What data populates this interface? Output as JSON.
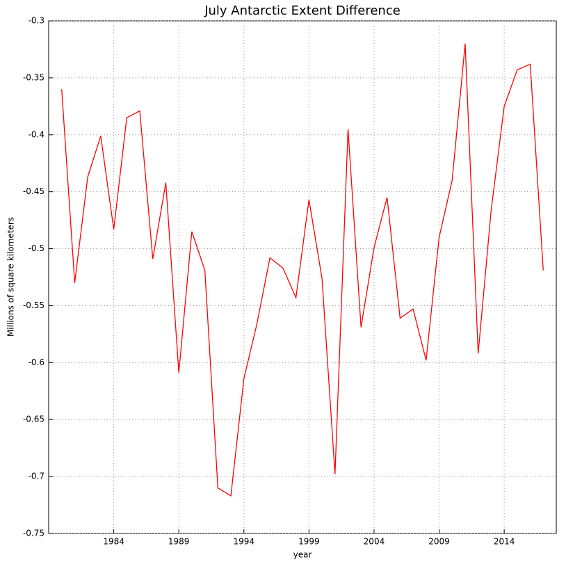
{
  "chart_data": {
    "type": "line",
    "title": "July Antarctic Extent Difference",
    "x_label": "year",
    "y_label": "Millions of square kilometers",
    "x": [
      1980,
      1981,
      1982,
      1983,
      1984,
      1985,
      1986,
      1987,
      1988,
      1989,
      1990,
      1991,
      1992,
      1993,
      1994,
      1995,
      1996,
      1997,
      1998,
      1999,
      2000,
      2001,
      2002,
      2003,
      2004,
      2005,
      2006,
      2007,
      2008,
      2009,
      2010,
      2011,
      2012,
      2013,
      2014,
      2015,
      2016,
      2017
    ],
    "series": [
      {
        "color": "#ff0000",
        "values": [
          -0.36,
          -0.53,
          -0.437,
          -0.401,
          -0.483,
          -0.385,
          -0.379,
          -0.509,
          -0.442,
          -0.609,
          -0.485,
          -0.519,
          -0.71,
          -0.717,
          -0.614,
          -0.566,
          -0.508,
          -0.517,
          -0.543,
          -0.457,
          -0.526,
          -0.698,
          -0.395,
          -0.569,
          -0.499,
          -0.455,
          -0.561,
          -0.553,
          -0.598,
          -0.49,
          -0.44,
          -0.32,
          -0.592,
          -0.466,
          -0.375,
          -0.343,
          -0.338,
          -0.519
        ]
      }
    ],
    "xlim": [
      1979,
      2018
    ],
    "xticks": [
      1984,
      1989,
      1994,
      1999,
      2004,
      2009,
      2014
    ],
    "ylim": [
      -0.75,
      -0.3
    ],
    "yticks": [
      -0.75,
      -0.7,
      -0.65,
      -0.6,
      -0.55,
      -0.5,
      -0.45,
      -0.4,
      -0.35,
      -0.3
    ],
    "grid": true
  }
}
